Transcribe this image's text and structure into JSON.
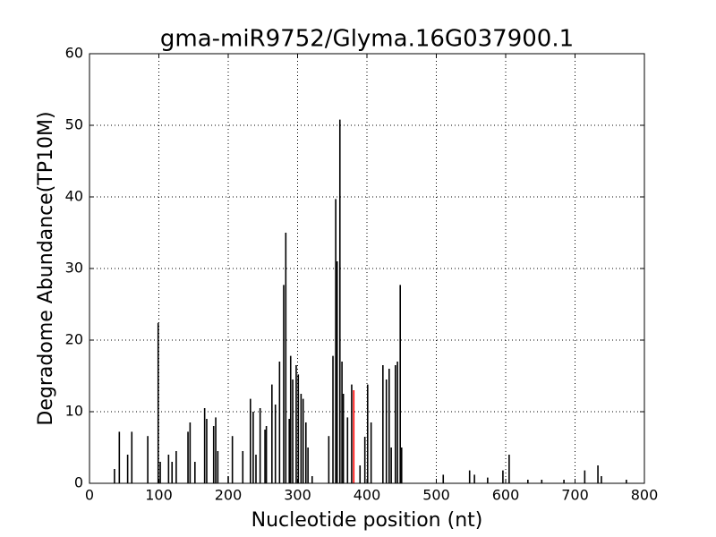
{
  "chart_data": {
    "type": "bar",
    "title": "gma-miR9752/Glyma.16G037900.1",
    "x_label": "Nucleotide position (nt)",
    "y_label": "Degradome Abundance(TP10M)",
    "xlim": [
      0,
      800
    ],
    "xticks": [
      0,
      100,
      200,
      300,
      400,
      500,
      600,
      700,
      800
    ],
    "ylim": [
      0,
      60
    ],
    "yticks": [
      0,
      10,
      20,
      30,
      40,
      50,
      60
    ],
    "grid": true,
    "series": [
      {
        "color": "#000000",
        "x": [
          36,
          43,
          55,
          61,
          84,
          99,
          102,
          114,
          119,
          125,
          142,
          145,
          152,
          166,
          169,
          179,
          182,
          185,
          200,
          206,
          221,
          232,
          236,
          240,
          246,
          253,
          255,
          263,
          268,
          274,
          280,
          283,
          288,
          290,
          293,
          298,
          301,
          305,
          308,
          312,
          315,
          321,
          345,
          351,
          355,
          357,
          361,
          364,
          366,
          372,
          378,
          390,
          397,
          401,
          406,
          423,
          428,
          432,
          435,
          441,
          444,
          448,
          450,
          510,
          548,
          555,
          574,
          596,
          605,
          632,
          652,
          684,
          714,
          733,
          738,
          774
        ],
        "values": [
          2,
          7.2,
          4,
          7.2,
          6.6,
          22.4,
          3,
          4,
          3,
          4.5,
          7.2,
          8.5,
          3,
          10.5,
          9,
          8,
          9.2,
          4.5,
          1,
          6.6,
          4.5,
          11.8,
          10,
          4,
          10.5,
          7.5,
          8,
          13.8,
          11,
          17,
          27.7,
          35,
          9,
          17.8,
          14.5,
          16.5,
          15.2,
          12.5,
          11.8,
          8.5,
          5,
          1,
          6.6,
          17.8,
          39.7,
          31,
          50.8,
          17,
          12.5,
          9.2,
          13.8,
          2.5,
          6.5,
          13.8,
          8.5,
          16.5,
          14.5,
          16,
          5,
          16.5,
          17,
          27.7,
          5,
          1.2,
          1.8,
          1.2,
          0.8,
          1.8,
          4,
          0.5,
          0.5,
          0.5,
          1.8,
          2.5,
          1,
          0.5
        ]
      },
      {
        "color": "#ff0000",
        "x": [
          381
        ],
        "values": [
          13
        ]
      }
    ]
  }
}
